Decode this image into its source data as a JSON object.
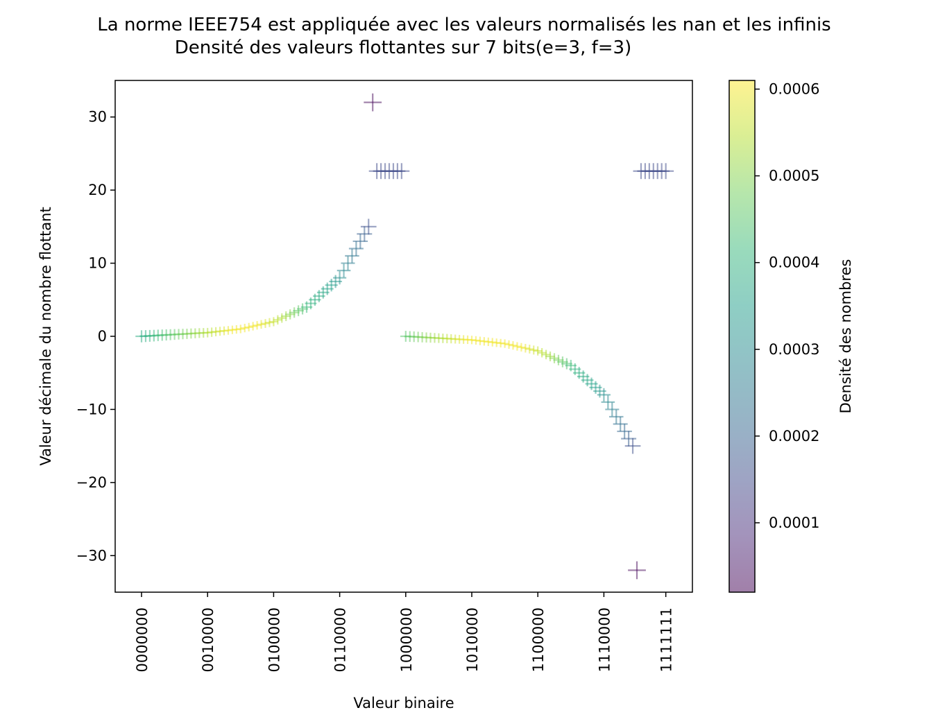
{
  "chart_data": {
    "type": "scatter",
    "title": "La norme IEEE754 est appliquée avec les valeurs normalisés les nan et les infinis",
    "subtitle": "Densité des valeurs flottantes sur 7 bits(e=3, f=3)",
    "xlabel": "Valeur binaire",
    "ylabel": "Valeur décimale du nombre flottant",
    "xlim": [
      -4,
      124
    ],
    "ylim": [
      -35,
      35
    ],
    "grid": false,
    "marker": "+",
    "x_ticks": [
      {
        "value": 0,
        "label": "0000000"
      },
      {
        "value": 16,
        "label": "0010000"
      },
      {
        "value": 32,
        "label": "0100000"
      },
      {
        "value": 48,
        "label": "0110000"
      },
      {
        "value": 64,
        "label": "1000000"
      },
      {
        "value": 80,
        "label": "1010000"
      },
      {
        "value": 96,
        "label": "1100000"
      },
      {
        "value": 112,
        "label": "1110000"
      },
      {
        "value": 127,
        "label": "1111111"
      }
    ],
    "y_ticks": [
      {
        "value": 30,
        "label": "30"
      },
      {
        "value": 20,
        "label": "20"
      },
      {
        "value": 10,
        "label": "10"
      },
      {
        "value": 0,
        "label": "0"
      },
      {
        "value": -10,
        "label": "−10"
      },
      {
        "value": -20,
        "label": "−20"
      },
      {
        "value": -30,
        "label": "−30"
      }
    ],
    "points": [
      {
        "x": 0,
        "y": 0.0,
        "d": 0.00038
      },
      {
        "x": 1,
        "y": 0.03,
        "d": 0.00039
      },
      {
        "x": 2,
        "y": 0.06,
        "d": 0.0004
      },
      {
        "x": 3,
        "y": 0.09,
        "d": 0.00041
      },
      {
        "x": 4,
        "y": 0.13,
        "d": 0.00042
      },
      {
        "x": 5,
        "y": 0.16,
        "d": 0.00043
      },
      {
        "x": 6,
        "y": 0.19,
        "d": 0.00044
      },
      {
        "x": 7,
        "y": 0.22,
        "d": 0.00045
      },
      {
        "x": 8,
        "y": 0.25,
        "d": 0.00046
      },
      {
        "x": 9,
        "y": 0.28,
        "d": 0.00047
      },
      {
        "x": 10,
        "y": 0.31,
        "d": 0.00048
      },
      {
        "x": 11,
        "y": 0.34,
        "d": 0.00049
      },
      {
        "x": 12,
        "y": 0.38,
        "d": 0.0005
      },
      {
        "x": 13,
        "y": 0.41,
        "d": 0.00051
      },
      {
        "x": 14,
        "y": 0.44,
        "d": 0.00052
      },
      {
        "x": 15,
        "y": 0.47,
        "d": 0.00053
      },
      {
        "x": 16,
        "y": 0.5,
        "d": 0.00054
      },
      {
        "x": 17,
        "y": 0.56,
        "d": 0.00055
      },
      {
        "x": 18,
        "y": 0.63,
        "d": 0.00056
      },
      {
        "x": 19,
        "y": 0.69,
        "d": 0.00057
      },
      {
        "x": 20,
        "y": 0.75,
        "d": 0.00058
      },
      {
        "x": 21,
        "y": 0.81,
        "d": 0.00059
      },
      {
        "x": 22,
        "y": 0.88,
        "d": 0.0006
      },
      {
        "x": 23,
        "y": 0.94,
        "d": 0.0006
      },
      {
        "x": 24,
        "y": 1.0,
        "d": 0.0006
      },
      {
        "x": 25,
        "y": 1.13,
        "d": 0.0006
      },
      {
        "x": 26,
        "y": 1.25,
        "d": 0.0006
      },
      {
        "x": 27,
        "y": 1.38,
        "d": 0.0006
      },
      {
        "x": 28,
        "y": 1.5,
        "d": 0.0006
      },
      {
        "x": 29,
        "y": 1.63,
        "d": 0.00059
      },
      {
        "x": 30,
        "y": 1.75,
        "d": 0.00058
      },
      {
        "x": 31,
        "y": 1.88,
        "d": 0.00057
      },
      {
        "x": 32,
        "y": 2.0,
        "d": 0.00056
      },
      {
        "x": 33,
        "y": 2.25,
        "d": 0.00055
      },
      {
        "x": 34,
        "y": 2.5,
        "d": 0.00054
      },
      {
        "x": 35,
        "y": 2.75,
        "d": 0.00052
      },
      {
        "x": 36,
        "y": 3.0,
        "d": 0.0005
      },
      {
        "x": 37,
        "y": 3.25,
        "d": 0.00048
      },
      {
        "x": 38,
        "y": 3.5,
        "d": 0.00046
      },
      {
        "x": 39,
        "y": 3.75,
        "d": 0.00044
      },
      {
        "x": 40,
        "y": 4.0,
        "d": 0.00042
      },
      {
        "x": 41,
        "y": 4.5,
        "d": 0.0004
      },
      {
        "x": 42,
        "y": 5.0,
        "d": 0.00039
      },
      {
        "x": 43,
        "y": 5.5,
        "d": 0.00038
      },
      {
        "x": 44,
        "y": 6.0,
        "d": 0.00037
      },
      {
        "x": 45,
        "y": 6.5,
        "d": 0.00036
      },
      {
        "x": 46,
        "y": 7.0,
        "d": 0.00035
      },
      {
        "x": 47,
        "y": 7.5,
        "d": 0.00033
      },
      {
        "x": 48,
        "y": 8.0,
        "d": 0.00031
      },
      {
        "x": 49,
        "y": 9.0,
        "d": 0.00029
      },
      {
        "x": 50,
        "y": 10.0,
        "d": 0.00027
      },
      {
        "x": 51,
        "y": 11.0,
        "d": 0.00025
      },
      {
        "x": 52,
        "y": 12.0,
        "d": 0.00023
      },
      {
        "x": 53,
        "y": 13.0,
        "d": 0.00021
      },
      {
        "x": 54,
        "y": 14.0,
        "d": 0.00019
      },
      {
        "x": 55,
        "y": 15.0,
        "d": 0.00016
      },
      {
        "x": 56,
        "y": 32.0,
        "d": 3e-05
      },
      {
        "x": 57,
        "y": 22.6,
        "d": 0.00015
      },
      {
        "x": 58,
        "y": 22.6,
        "d": 0.00015
      },
      {
        "x": 59,
        "y": 22.6,
        "d": 0.00015
      },
      {
        "x": 60,
        "y": 22.6,
        "d": 0.00015
      },
      {
        "x": 61,
        "y": 22.6,
        "d": 0.00015
      },
      {
        "x": 62,
        "y": 22.6,
        "d": 0.00015
      },
      {
        "x": 63,
        "y": 22.6,
        "d": 0.00015
      },
      {
        "x": 64,
        "y": 0.0,
        "d": 0.00045
      },
      {
        "x": 65,
        "y": -0.03,
        "d": 0.00046
      },
      {
        "x": 66,
        "y": -0.06,
        "d": 0.00047
      },
      {
        "x": 67,
        "y": -0.09,
        "d": 0.00048
      },
      {
        "x": 68,
        "y": -0.13,
        "d": 0.00049
      },
      {
        "x": 69,
        "y": -0.16,
        "d": 0.0005
      },
      {
        "x": 70,
        "y": -0.19,
        "d": 0.00051
      },
      {
        "x": 71,
        "y": -0.22,
        "d": 0.00052
      },
      {
        "x": 72,
        "y": -0.25,
        "d": 0.00053
      },
      {
        "x": 73,
        "y": -0.28,
        "d": 0.00054
      },
      {
        "x": 74,
        "y": -0.31,
        "d": 0.00055
      },
      {
        "x": 75,
        "y": -0.34,
        "d": 0.00056
      },
      {
        "x": 76,
        "y": -0.38,
        "d": 0.00057
      },
      {
        "x": 77,
        "y": -0.41,
        "d": 0.00058
      },
      {
        "x": 78,
        "y": -0.44,
        "d": 0.00059
      },
      {
        "x": 79,
        "y": -0.47,
        "d": 0.0006
      },
      {
        "x": 80,
        "y": -0.5,
        "d": 0.0006
      },
      {
        "x": 81,
        "y": -0.56,
        "d": 0.0006
      },
      {
        "x": 82,
        "y": -0.63,
        "d": 0.0006
      },
      {
        "x": 83,
        "y": -0.69,
        "d": 0.0006
      },
      {
        "x": 84,
        "y": -0.75,
        "d": 0.0006
      },
      {
        "x": 85,
        "y": -0.81,
        "d": 0.0006
      },
      {
        "x": 86,
        "y": -0.88,
        "d": 0.0006
      },
      {
        "x": 87,
        "y": -0.94,
        "d": 0.0006
      },
      {
        "x": 88,
        "y": -1.0,
        "d": 0.0006
      },
      {
        "x": 89,
        "y": -1.13,
        "d": 0.0006
      },
      {
        "x": 90,
        "y": -1.25,
        "d": 0.0006
      },
      {
        "x": 91,
        "y": -1.38,
        "d": 0.0006
      },
      {
        "x": 92,
        "y": -1.5,
        "d": 0.0006
      },
      {
        "x": 93,
        "y": -1.63,
        "d": 0.00059
      },
      {
        "x": 94,
        "y": -1.75,
        "d": 0.00058
      },
      {
        "x": 95,
        "y": -1.88,
        "d": 0.00057
      },
      {
        "x": 96,
        "y": -2.0,
        "d": 0.00056
      },
      {
        "x": 97,
        "y": -2.25,
        "d": 0.00055
      },
      {
        "x": 98,
        "y": -2.5,
        "d": 0.00054
      },
      {
        "x": 99,
        "y": -2.75,
        "d": 0.00052
      },
      {
        "x": 100,
        "y": -3.0,
        "d": 0.0005
      },
      {
        "x": 101,
        "y": -3.25,
        "d": 0.00048
      },
      {
        "x": 102,
        "y": -3.5,
        "d": 0.00046
      },
      {
        "x": 103,
        "y": -3.75,
        "d": 0.00044
      },
      {
        "x": 104,
        "y": -4.0,
        "d": 0.00042
      },
      {
        "x": 105,
        "y": -4.5,
        "d": 0.0004
      },
      {
        "x": 106,
        "y": -5.0,
        "d": 0.00039
      },
      {
        "x": 107,
        "y": -5.5,
        "d": 0.00038
      },
      {
        "x": 108,
        "y": -6.0,
        "d": 0.00037
      },
      {
        "x": 109,
        "y": -6.5,
        "d": 0.00036
      },
      {
        "x": 110,
        "y": -7.0,
        "d": 0.00035
      },
      {
        "x": 111,
        "y": -7.5,
        "d": 0.00033
      },
      {
        "x": 112,
        "y": -8.0,
        "d": 0.00031
      },
      {
        "x": 113,
        "y": -9.0,
        "d": 0.00029
      },
      {
        "x": 114,
        "y": -10.0,
        "d": 0.00027
      },
      {
        "x": 115,
        "y": -11.0,
        "d": 0.00025
      },
      {
        "x": 116,
        "y": -12.0,
        "d": 0.00023
      },
      {
        "x": 117,
        "y": -13.0,
        "d": 0.00021
      },
      {
        "x": 118,
        "y": -14.0,
        "d": 0.00019
      },
      {
        "x": 119,
        "y": -15.0,
        "d": 0.00016
      },
      {
        "x": 120,
        "y": -32.0,
        "d": 3e-05
      },
      {
        "x": 121,
        "y": 22.6,
        "d": 0.00015
      },
      {
        "x": 122,
        "y": 22.6,
        "d": 0.00015
      },
      {
        "x": 123,
        "y": 22.6,
        "d": 0.00015
      },
      {
        "x": 124,
        "y": 22.6,
        "d": 0.00015
      },
      {
        "x": 125,
        "y": 22.6,
        "d": 0.00015
      },
      {
        "x": 126,
        "y": 22.6,
        "d": 0.00015
      },
      {
        "x": 127,
        "y": 22.6,
        "d": 0.00015
      }
    ],
    "colorbar": {
      "label": "Densité des nombres",
      "colormap": "viridis",
      "alpha": 0.5,
      "range": [
        2e-05,
        0.00061
      ],
      "ticks": [
        {
          "value": 0.0001,
          "label": "0.0001"
        },
        {
          "value": 0.0002,
          "label": "0.0002"
        },
        {
          "value": 0.0003,
          "label": "0.0003"
        },
        {
          "value": 0.0004,
          "label": "0.0004"
        },
        {
          "value": 0.0005,
          "label": "0.0005"
        },
        {
          "value": 0.0006,
          "label": "0.0006"
        }
      ]
    }
  }
}
